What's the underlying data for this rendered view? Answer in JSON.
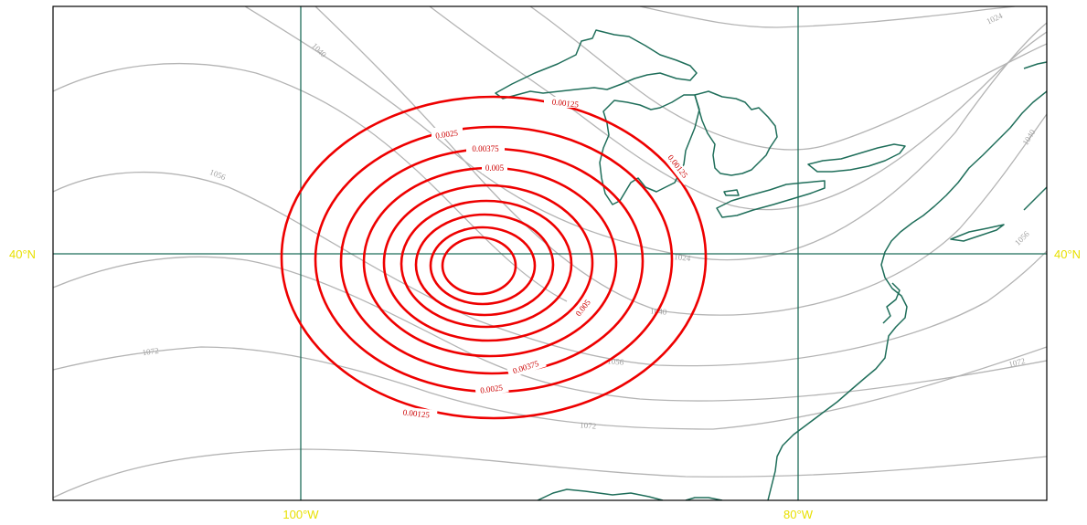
{
  "map": {
    "colors": {
      "background": "#ffffff",
      "frame": "#000000",
      "gridlines": "#1f6e5a",
      "coastline": "#1f6e5a",
      "tick_labels": "#e8e000",
      "height_contours": "#b4b4b4",
      "height_labels": "#a0a0a0",
      "field_contours": "#ee0000",
      "field_labels": "#cc0000"
    },
    "gridlines": {
      "latitude": [
        "40°N"
      ],
      "longitude": [
        "100°W",
        "80°W"
      ]
    },
    "labels": {
      "lat_left": "40°N",
      "lat_right": "40°N",
      "lon_100w": "100°W",
      "lon_80w": "80°W"
    },
    "height_contour_levels": [
      "1024",
      "1040",
      "1056",
      "1072"
    ],
    "height_labels": {
      "l1024_ne": "1024",
      "l1040_ne": "1040",
      "l1040_nw": "1040",
      "l1056_nw": "1056",
      "l1024_mid": "1024",
      "l1040_mid": "1040",
      "l1056_e": "1056",
      "l1056_mid": "1056",
      "l1072_w": "1072",
      "l1072_mid": "1072",
      "l1072_e": "1072"
    },
    "field_contour_levels": [
      "0.00125",
      "0.0025",
      "0.00375",
      "0.005"
    ],
    "field_labels": {
      "a_00125_top": "0.00125",
      "a_0025_top": "0.0025",
      "a_00375_top": "0.00375",
      "a_005_top": "0.005",
      "a_00125_right": "0.00125",
      "a_005_right": "0.005",
      "a_00375_bot": "0.00375",
      "a_0025_bot": "0.0025",
      "a_00125_bot": "0.00125"
    }
  }
}
